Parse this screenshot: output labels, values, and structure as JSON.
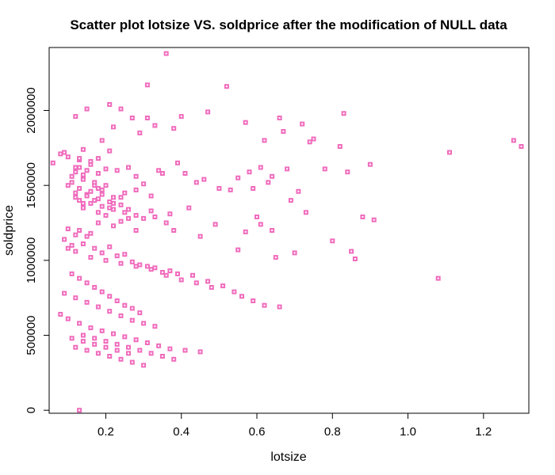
{
  "chart_data": {
    "type": "scatter",
    "title": "Scatter plot lotsize VS. soldprice after the modification of NULL data",
    "xlabel": "lotsize",
    "ylabel": "soldprice",
    "xlim": [
      0.05,
      1.32
    ],
    "ylim": [
      -20000,
      2420000
    ],
    "x_ticks": [
      0.2,
      0.4,
      0.6,
      0.8,
      1.0,
      1.2
    ],
    "x_tick_labels": [
      "0.2",
      "0.4",
      "0.6",
      "0.8",
      "1.0",
      "1.2"
    ],
    "y_ticks": [
      0,
      500000,
      1000000,
      1500000,
      2000000
    ],
    "y_tick_labels": [
      "0",
      "500000",
      "1000000",
      "1500000",
      "2000000"
    ],
    "grid": false,
    "legend": "none",
    "marker": "open-square",
    "point_color": "#f06cbd",
    "series": [
      {
        "x": [
          0.13,
          0.36,
          0.31,
          0.52,
          0.21,
          0.24,
          0.31,
          0.15,
          0.12,
          0.47,
          0.27,
          0.4,
          0.57,
          0.22,
          0.38,
          0.33,
          0.66,
          0.72,
          0.83,
          0.67,
          0.75,
          0.62,
          0.74,
          0.82,
          0.29,
          0.19,
          0.09,
          0.08,
          0.06,
          0.1,
          0.13,
          0.21,
          0.13,
          0.18,
          0.16,
          0.2,
          0.12,
          0.23,
          0.14,
          0.14,
          0.26,
          0.17,
          0.28,
          0.11,
          0.18,
          0.19,
          0.15,
          0.3,
          0.25,
          0.35,
          0.12,
          0.17,
          0.24,
          0.14,
          0.21,
          0.34,
          0.39,
          0.28,
          0.41,
          0.44,
          0.46,
          0.32,
          0.5,
          0.55,
          0.53,
          0.58,
          0.61,
          0.63,
          0.59,
          0.64,
          0.68,
          0.71,
          0.69,
          0.78,
          0.84,
          0.9,
          1.11,
          1.28,
          1.3,
          0.85,
          0.88,
          0.91,
          1.08,
          0.86,
          0.8,
          0.55,
          0.57,
          0.61,
          0.65,
          0.7,
          0.64,
          0.6,
          0.73,
          0.49,
          0.45,
          0.37,
          0.42,
          0.38,
          0.33,
          0.36,
          0.32,
          0.28,
          0.26,
          0.24,
          0.22,
          0.2,
          0.18,
          0.16,
          0.15,
          0.13,
          0.12,
          0.1,
          0.09,
          0.11,
          0.14,
          0.17,
          0.19,
          0.21,
          0.23,
          0.25,
          0.27,
          0.29,
          0.31,
          0.33,
          0.35,
          0.37,
          0.39,
          0.43,
          0.47,
          0.51,
          0.54,
          0.56,
          0.59,
          0.62,
          0.66,
          0.14,
          0.18,
          0.22,
          0.26,
          0.3,
          0.1,
          0.12,
          0.16,
          0.2,
          0.24,
          0.28,
          0.32,
          0.36,
          0.4,
          0.44,
          0.48,
          0.11,
          0.13,
          0.15,
          0.17,
          0.19,
          0.21,
          0.23,
          0.25,
          0.27,
          0.29,
          0.09,
          0.12,
          0.15,
          0.18,
          0.21,
          0.24,
          0.27,
          0.3,
          0.33,
          0.08,
          0.1,
          0.13,
          0.16,
          0.19,
          0.22,
          0.25,
          0.28,
          0.31,
          0.34,
          0.37,
          0.41,
          0.45,
          0.14,
          0.17,
          0.2,
          0.23,
          0.26,
          0.29,
          0.32,
          0.35,
          0.38,
          0.12,
          0.15,
          0.18,
          0.21,
          0.24,
          0.27,
          0.3,
          0.11,
          0.14,
          0.17,
          0.2,
          0.23,
          0.26,
          0.13,
          0.16,
          0.19,
          0.22,
          0.25,
          0.28,
          0.12,
          0.15,
          0.18,
          0.21,
          0.24,
          0.1,
          0.13,
          0.16,
          0.19,
          0.22,
          0.11,
          0.14,
          0.17,
          0.2,
          0.12,
          0.15,
          0.18,
          0.13,
          0.16,
          0.14
        ],
        "y": [
          0,
          2380000,
          2170000,
          2160000,
          2040000,
          2010000,
          1950000,
          2010000,
          1960000,
          1990000,
          1950000,
          1960000,
          1920000,
          1890000,
          1880000,
          1900000,
          1950000,
          1910000,
          1980000,
          1860000,
          1810000,
          1800000,
          1790000,
          1760000,
          1850000,
          1800000,
          1720000,
          1710000,
          1650000,
          1690000,
          1670000,
          1730000,
          1620000,
          1680000,
          1640000,
          1610000,
          1590000,
          1600000,
          1550000,
          1570000,
          1620000,
          1500000,
          1560000,
          1520000,
          1480000,
          1470000,
          1440000,
          1510000,
          1450000,
          1580000,
          1420000,
          1400000,
          1420000,
          1380000,
          1350000,
          1600000,
          1650000,
          1470000,
          1580000,
          1520000,
          1540000,
          1430000,
          1480000,
          1550000,
          1470000,
          1590000,
          1620000,
          1520000,
          1480000,
          1560000,
          1610000,
          1460000,
          1400000,
          1610000,
          1590000,
          1640000,
          1720000,
          1800000,
          1760000,
          1060000,
          1290000,
          1270000,
          880000,
          1010000,
          1130000,
          1070000,
          1190000,
          1240000,
          1020000,
          1050000,
          1200000,
          1290000,
          1320000,
          1240000,
          1160000,
          1310000,
          1350000,
          1200000,
          1290000,
          1250000,
          1330000,
          1200000,
          1280000,
          1260000,
          1230000,
          1300000,
          1250000,
          1180000,
          1160000,
          1200000,
          1170000,
          1210000,
          1140000,
          1100000,
          1110000,
          1080000,
          1050000,
          1090000,
          1030000,
          1040000,
          990000,
          970000,
          960000,
          950000,
          920000,
          930000,
          910000,
          900000,
          860000,
          830000,
          790000,
          760000,
          730000,
          700000,
          690000,
          1350000,
          1320000,
          1380000,
          1340000,
          1280000,
          1080000,
          1060000,
          1020000,
          1000000,
          980000,
          960000,
          940000,
          900000,
          870000,
          850000,
          820000,
          910000,
          880000,
          850000,
          820000,
          790000,
          760000,
          730000,
          700000,
          680000,
          650000,
          780000,
          750000,
          720000,
          690000,
          660000,
          630000,
          600000,
          580000,
          560000,
          640000,
          610000,
          580000,
          550000,
          530000,
          510000,
          490000,
          470000,
          450000,
          430000,
          410000,
          400000,
          390000,
          500000,
          480000,
          460000,
          440000,
          420000,
          400000,
          380000,
          360000,
          340000,
          420000,
          400000,
          380000,
          360000,
          340000,
          320000,
          300000,
          480000,
          460000,
          440000,
          420000,
          400000,
          380000,
          1400000,
          1380000,
          1360000,
          1340000,
          1320000,
          1300000,
          1450000,
          1430000,
          1410000,
          1390000,
          1370000,
          1500000,
          1480000,
          1460000,
          1440000,
          1420000,
          1560000,
          1540000,
          1520000,
          1500000,
          1620000,
          1600000,
          1580000,
          1680000,
          1660000,
          1740000
        ]
      }
    ]
  }
}
